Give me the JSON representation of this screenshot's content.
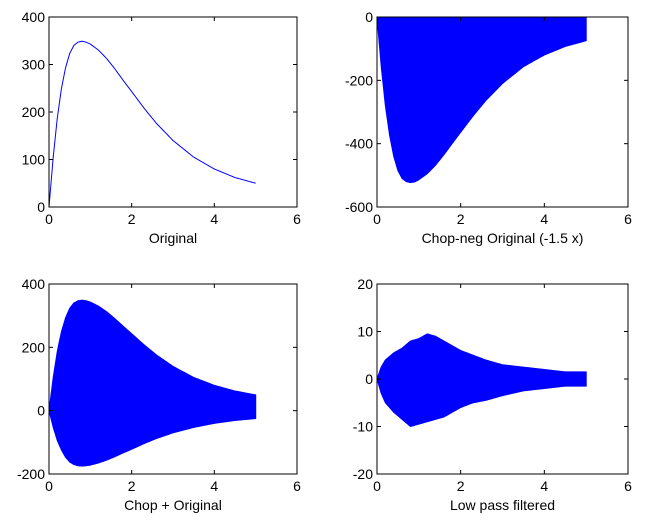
{
  "chart_data": [
    {
      "type": "line",
      "xlabel": "Original",
      "xlim": [
        0,
        6
      ],
      "ylim": [
        0,
        400
      ],
      "xticks": [
        0,
        2,
        4,
        6
      ],
      "yticks": [
        0,
        100,
        200,
        300,
        400
      ],
      "color": "#0000ff",
      "series": [
        {
          "x": [
            0,
            0.1,
            0.2,
            0.3,
            0.4,
            0.5,
            0.6,
            0.7,
            0.8,
            0.9,
            1.0,
            1.2,
            1.4,
            1.6,
            1.8,
            2.0,
            2.3,
            2.6,
            3.0,
            3.5,
            4.0,
            4.5,
            5.0
          ],
          "y": [
            0,
            103,
            187,
            249,
            293,
            323,
            340,
            347,
            349,
            347,
            343,
            330,
            312,
            290,
            266,
            243,
            208,
            176,
            140,
            105,
            80,
            62,
            50
          ]
        }
      ]
    },
    {
      "type": "area",
      "xlabel": "Chop-neg Original (-1.5 x)",
      "xlim": [
        0,
        6
      ],
      "ylim": [
        -600,
        0
      ],
      "xticks": [
        0,
        2,
        4,
        6
      ],
      "yticks": [
        -600,
        -400,
        -200,
        0
      ],
      "color": "#0000ff",
      "upper": {
        "x": [
          0,
          5
        ],
        "y": [
          0,
          0
        ]
      },
      "lower": {
        "x": [
          0,
          0.1,
          0.2,
          0.3,
          0.4,
          0.5,
          0.6,
          0.7,
          0.8,
          0.9,
          1.0,
          1.2,
          1.4,
          1.6,
          1.8,
          2.0,
          2.3,
          2.6,
          3.0,
          3.5,
          4.0,
          4.5,
          5.0
        ],
        "y": [
          0,
          -155,
          -280,
          -373,
          -440,
          -485,
          -510,
          -520,
          -523,
          -521,
          -514,
          -495,
          -468,
          -435,
          -399,
          -364,
          -312,
          -264,
          -210,
          -157,
          -120,
          -93,
          -75
        ]
      }
    },
    {
      "type": "area",
      "xlabel": "Chop + Original",
      "xlim": [
        0,
        6
      ],
      "ylim": [
        -200,
        400
      ],
      "xticks": [
        0,
        2,
        4,
        6
      ],
      "yticks": [
        -200,
        0,
        200,
        400
      ],
      "color": "#0000ff",
      "upper": {
        "x": [
          0,
          0.1,
          0.2,
          0.3,
          0.4,
          0.5,
          0.6,
          0.7,
          0.8,
          0.9,
          1.0,
          1.2,
          1.4,
          1.6,
          1.8,
          2.0,
          2.3,
          2.6,
          3.0,
          3.5,
          4.0,
          4.5,
          5.0
        ],
        "y": [
          0,
          103,
          187,
          249,
          293,
          323,
          340,
          347,
          349,
          347,
          343,
          330,
          312,
          290,
          266,
          243,
          208,
          176,
          140,
          105,
          80,
          62,
          50
        ]
      },
      "lower": {
        "x": [
          0,
          0.1,
          0.2,
          0.3,
          0.4,
          0.5,
          0.6,
          0.7,
          0.8,
          0.9,
          1.0,
          1.2,
          1.4,
          1.6,
          1.8,
          2.0,
          2.3,
          2.6,
          3.0,
          3.5,
          4.0,
          4.5,
          5.0
        ],
        "y": [
          0,
          -52,
          -94,
          -124,
          -147,
          -162,
          -170,
          -174,
          -175,
          -174,
          -172,
          -165,
          -156,
          -145,
          -133,
          -122,
          -104,
          -88,
          -70,
          -53,
          -40,
          -31,
          -25
        ]
      }
    },
    {
      "type": "area",
      "xlabel": "Low pass filtered",
      "xlim": [
        0,
        6
      ],
      "ylim": [
        -20,
        20
      ],
      "xticks": [
        0,
        2,
        4,
        6
      ],
      "yticks": [
        -20,
        -10,
        0,
        10,
        20
      ],
      "color": "#0000ff",
      "upper": {
        "x": [
          0,
          0.1,
          0.2,
          0.4,
          0.6,
          0.8,
          1.0,
          1.2,
          1.4,
          1.6,
          1.8,
          2.0,
          2.3,
          2.6,
          3.0,
          3.5,
          4.0,
          4.5,
          5.0
        ],
        "y": [
          0,
          2.5,
          4,
          5.5,
          6.5,
          8,
          8.5,
          9.5,
          9,
          8,
          7,
          6,
          5,
          4,
          3,
          2.5,
          2,
          1.5,
          1.5
        ]
      },
      "lower": {
        "x": [
          0,
          0.1,
          0.2,
          0.4,
          0.6,
          0.8,
          1.0,
          1.2,
          1.4,
          1.6,
          1.8,
          2.0,
          2.3,
          2.6,
          3.0,
          3.5,
          4.0,
          4.5,
          5.0
        ],
        "y": [
          0,
          -3,
          -5,
          -7,
          -8.5,
          -10,
          -9.5,
          -9,
          -8.5,
          -8,
          -7,
          -6,
          -5,
          -4.5,
          -3.5,
          -2.5,
          -2,
          -1.5,
          -1.5
        ]
      }
    }
  ]
}
